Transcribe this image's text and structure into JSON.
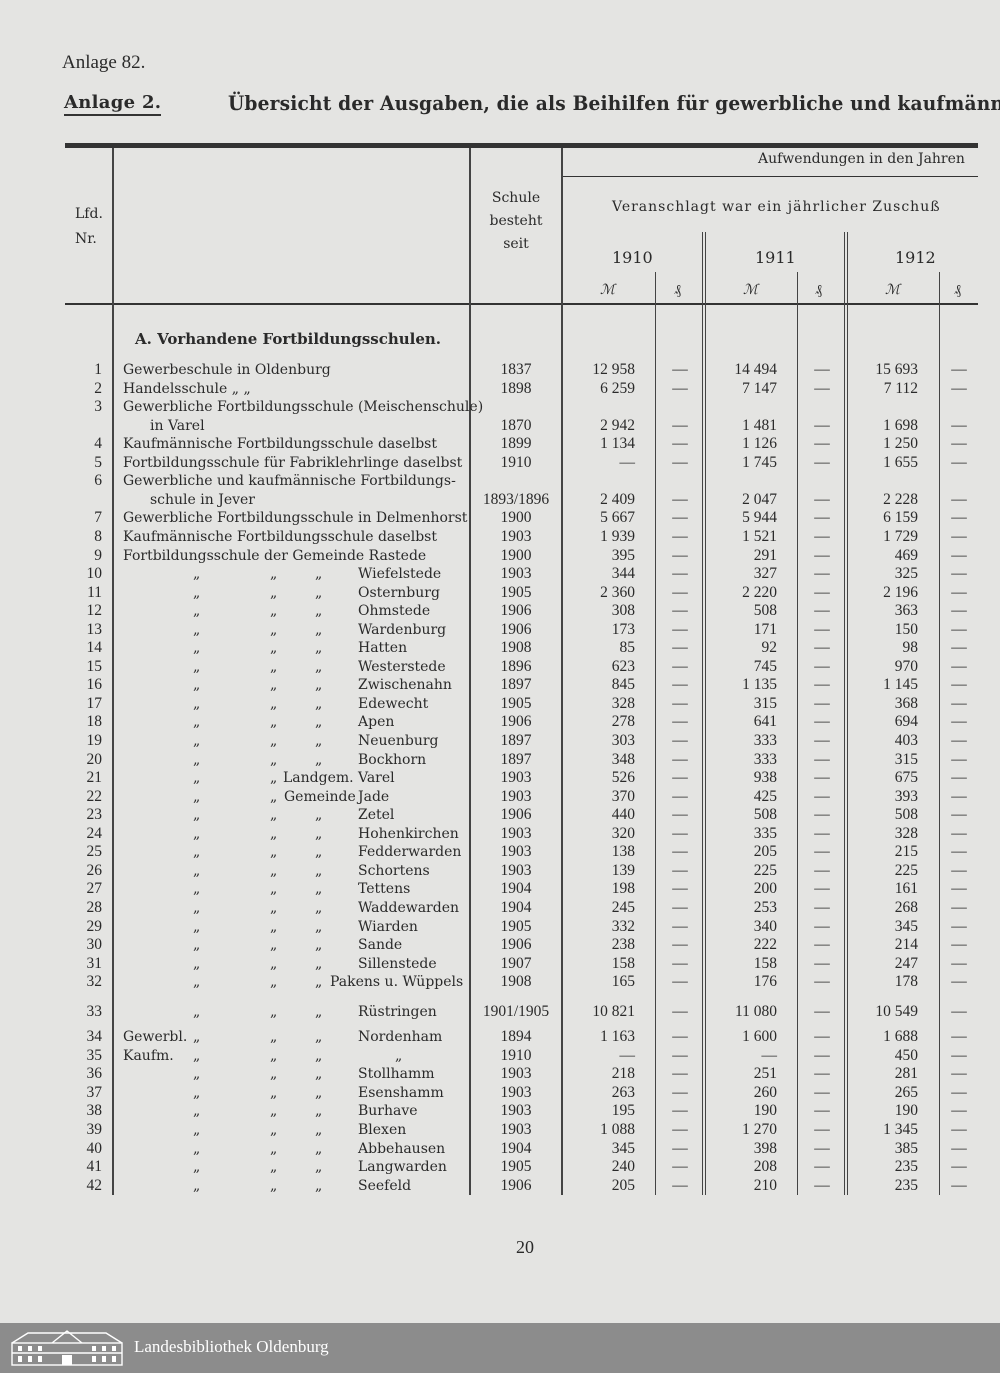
{
  "page_label": "Anlage 82.",
  "annex_label": "Anlage 2.",
  "title": "Übersicht der Ausgaben, die als Beihilfen für gewerbliche und kaufmännische",
  "header": {
    "nr_line1": "Lfd.",
    "nr_line2": "Nr.",
    "since_line1": "Schule",
    "since_line2": "besteht",
    "since_line3": "seit",
    "expenses": "Aufwendungen in den Jahren",
    "budgeted": "Veranschlagt war ein jährlicher Zuschuß",
    "years": [
      "1910",
      "1911",
      "1912"
    ],
    "mark": "ℳ",
    "pfennig": "₰"
  },
  "section_title": "A. Vorhandene Fortbildungsschulen.",
  "rows": [
    {
      "nr": "1",
      "lines": [
        "Gewerbeschule in Oldenburg"
      ],
      "since": "1837",
      "v": [
        "12 958",
        "—",
        "14 494",
        "—",
        "15 693",
        "—"
      ]
    },
    {
      "nr": "2",
      "lines": [
        "Handelsschule  „      „"
      ],
      "since": "1898",
      "v": [
        "6 259",
        "—",
        "7 147",
        "—",
        "7 112",
        "—"
      ]
    },
    {
      "nr": "3",
      "lines": [
        "Gewerbliche Fortbildungsschule (Meischenschule)",
        "in Varel"
      ],
      "since": "1870",
      "v": [
        "2 942",
        "—",
        "1 481",
        "—",
        "1 698",
        "—"
      ]
    },
    {
      "nr": "4",
      "lines": [
        "Kaufmännische Fortbildungsschule daselbst"
      ],
      "since": "1899",
      "v": [
        "1 134",
        "—",
        "1 126",
        "—",
        "1 250",
        "—"
      ]
    },
    {
      "nr": "5",
      "lines": [
        "Fortbildungsschule für Fabriklehrlinge daselbst"
      ],
      "since": "1910",
      "v": [
        "—",
        "—",
        "1 745",
        "—",
        "1 655",
        "—"
      ]
    },
    {
      "nr": "6",
      "lines": [
        "Gewerbliche und kaufmännische Fortbildungs-",
        "schule in Jever"
      ],
      "since": "1893/1896",
      "v": [
        "2 409",
        "—",
        "2 047",
        "—",
        "2 228",
        "—"
      ]
    },
    {
      "nr": "7",
      "lines": [
        "Gewerbliche Fortbildungsschule in Delmenhorst"
      ],
      "since": "1900",
      "v": [
        "5 667",
        "—",
        "5 944",
        "—",
        "6 159",
        "—"
      ]
    },
    {
      "nr": "8",
      "lines": [
        "Kaufmännische Fortbildungsschule daselbst"
      ],
      "since": "1903",
      "v": [
        "1 939",
        "—",
        "1 521",
        "—",
        "1 729",
        "—"
      ]
    },
    {
      "nr": "9",
      "lines": [
        "Fortbildungsschule der Gemeinde Rastede"
      ],
      "since": "1900",
      "v": [
        "395",
        "—",
        "291",
        "—",
        "469",
        "—"
      ]
    },
    {
      "nr": "10",
      "ditto": [
        "„",
        "„",
        "„"
      ],
      "place": "Wiefelstede",
      "since": "1903",
      "v": [
        "344",
        "—",
        "327",
        "—",
        "325",
        "—"
      ]
    },
    {
      "nr": "11",
      "ditto": [
        "„",
        "„",
        "„"
      ],
      "place": "Osternburg",
      "since": "1905",
      "v": [
        "2 360",
        "—",
        "2 220",
        "—",
        "2 196",
        "—"
      ]
    },
    {
      "nr": "12",
      "ditto": [
        "„",
        "„",
        "„"
      ],
      "place": "Ohmstede",
      "since": "1906",
      "v": [
        "308",
        "—",
        "508",
        "—",
        "363",
        "—"
      ]
    },
    {
      "nr": "13",
      "ditto": [
        "„",
        "„",
        "„"
      ],
      "place": "Wardenburg",
      "since": "1906",
      "v": [
        "173",
        "—",
        "171",
        "—",
        "150",
        "—"
      ]
    },
    {
      "nr": "14",
      "ditto": [
        "„",
        "„",
        "„"
      ],
      "place": "Hatten",
      "since": "1908",
      "v": [
        "85",
        "—",
        "92",
        "—",
        "98",
        "—"
      ]
    },
    {
      "nr": "15",
      "ditto": [
        "„",
        "„",
        "„"
      ],
      "place": "Westerstede",
      "since": "1896",
      "v": [
        "623",
        "—",
        "745",
        "—",
        "970",
        "—"
      ]
    },
    {
      "nr": "16",
      "ditto": [
        "„",
        "„",
        "„"
      ],
      "place": "Zwischenahn",
      "since": "1897",
      "v": [
        "845",
        "—",
        "1 135",
        "—",
        "1 145",
        "—"
      ]
    },
    {
      "nr": "17",
      "ditto": [
        "„",
        "„",
        "„"
      ],
      "place": "Edewecht",
      "since": "1905",
      "v": [
        "328",
        "—",
        "315",
        "—",
        "368",
        "—"
      ]
    },
    {
      "nr": "18",
      "ditto": [
        "„",
        "„",
        "„"
      ],
      "place": "Apen",
      "since": "1906",
      "v": [
        "278",
        "—",
        "641",
        "—",
        "694",
        "—"
      ]
    },
    {
      "nr": "19",
      "ditto": [
        "„",
        "„",
        "„"
      ],
      "place": "Neuenburg",
      "since": "1897",
      "v": [
        "303",
        "—",
        "333",
        "—",
        "403",
        "—"
      ]
    },
    {
      "nr": "20",
      "ditto": [
        "„",
        "„",
        "„"
      ],
      "place": "Bockhorn",
      "since": "1897",
      "v": [
        "348",
        "—",
        "333",
        "—",
        "315",
        "—"
      ]
    },
    {
      "nr": "21",
      "ditto": [
        "„",
        "„"
      ],
      "mid": "Landgem.",
      "place": "Varel",
      "since": "1903",
      "v": [
        "526",
        "—",
        "938",
        "—",
        "675",
        "—"
      ]
    },
    {
      "nr": "22",
      "ditto": [
        "„",
        "„"
      ],
      "mid": "Gemeinde",
      "place": "Jade",
      "since": "1903",
      "v": [
        "370",
        "—",
        "425",
        "—",
        "393",
        "—"
      ]
    },
    {
      "nr": "23",
      "ditto": [
        "„",
        "„",
        "„"
      ],
      "place": "Zetel",
      "since": "1906",
      "v": [
        "440",
        "—",
        "508",
        "—",
        "508",
        "—"
      ]
    },
    {
      "nr": "24",
      "ditto": [
        "„",
        "„",
        "„"
      ],
      "place": "Hohenkirchen",
      "since": "1903",
      "v": [
        "320",
        "—",
        "335",
        "—",
        "328",
        "—"
      ]
    },
    {
      "nr": "25",
      "ditto": [
        "„",
        "„",
        "„"
      ],
      "place": "Fedderwarden",
      "since": "1903",
      "v": [
        "138",
        "—",
        "205",
        "—",
        "215",
        "—"
      ]
    },
    {
      "nr": "26",
      "ditto": [
        "„",
        "„",
        "„"
      ],
      "place": "Schortens",
      "since": "1903",
      "v": [
        "139",
        "—",
        "225",
        "—",
        "225",
        "—"
      ]
    },
    {
      "nr": "27",
      "ditto": [
        "„",
        "„",
        "„"
      ],
      "place": "Tettens",
      "since": "1904",
      "v": [
        "198",
        "—",
        "200",
        "—",
        "161",
        "—"
      ]
    },
    {
      "nr": "28",
      "ditto": [
        "„",
        "„",
        "„"
      ],
      "place": "Waddewarden",
      "since": "1904",
      "v": [
        "245",
        "—",
        "253",
        "—",
        "268",
        "—"
      ]
    },
    {
      "nr": "29",
      "ditto": [
        "„",
        "„",
        "„"
      ],
      "place": "Wiarden",
      "since": "1905",
      "v": [
        "332",
        "—",
        "340",
        "—",
        "345",
        "—"
      ]
    },
    {
      "nr": "30",
      "ditto": [
        "„",
        "„",
        "„"
      ],
      "place": "Sande",
      "since": "1906",
      "v": [
        "238",
        "—",
        "222",
        "—",
        "214",
        "—"
      ]
    },
    {
      "nr": "31",
      "ditto": [
        "„",
        "„",
        "„"
      ],
      "place": "Sillenstede",
      "since": "1907",
      "v": [
        "158",
        "—",
        "158",
        "—",
        "247",
        "—"
      ]
    },
    {
      "nr": "32",
      "ditto": [
        "„",
        "„",
        "„"
      ],
      "place": "Pakens u. Wüppels",
      "since": "1908",
      "v": [
        "165",
        "—",
        "176",
        "—",
        "178",
        "—"
      ]
    },
    {
      "nr": "33",
      "ditto": [
        "„",
        "„",
        "„"
      ],
      "place": "Rüstringen",
      "since": "1901/1905",
      "v": [
        "10 821",
        "—",
        "11 080",
        "—",
        "10 549",
        "—"
      ]
    },
    {
      "nr": "34",
      "prefix": "Gewerbl.",
      "ditto": [
        "„",
        "„",
        "„"
      ],
      "place": "Nordenham",
      "since": "1894",
      "v": [
        "1 163",
        "—",
        "1 600",
        "—",
        "1 688",
        "—"
      ]
    },
    {
      "nr": "35",
      "prefix": "Kaufm.",
      "ditto": [
        "„",
        "„",
        "„"
      ],
      "place": "„",
      "since": "1910",
      "v": [
        "—",
        "—",
        "—",
        "—",
        "450",
        "—"
      ]
    },
    {
      "nr": "36",
      "ditto": [
        "„",
        "„",
        "„"
      ],
      "place": "Stollhamm",
      "since": "1903",
      "v": [
        "218",
        "—",
        "251",
        "—",
        "281",
        "—"
      ]
    },
    {
      "nr": "37",
      "ditto": [
        "„",
        "„",
        "„"
      ],
      "place": "Esenshamm",
      "since": "1903",
      "v": [
        "263",
        "—",
        "260",
        "—",
        "265",
        "—"
      ]
    },
    {
      "nr": "38",
      "ditto": [
        "„",
        "„",
        "„"
      ],
      "place": "Burhave",
      "since": "1903",
      "v": [
        "195",
        "—",
        "190",
        "—",
        "190",
        "—"
      ]
    },
    {
      "nr": "39",
      "ditto": [
        "„",
        "„",
        "„"
      ],
      "place": "Blexen",
      "since": "1903",
      "v": [
        "1 088",
        "—",
        "1 270",
        "—",
        "1 345",
        "—"
      ]
    },
    {
      "nr": "40",
      "ditto": [
        "„",
        "„",
        "„"
      ],
      "place": "Abbehausen",
      "since": "1904",
      "v": [
        "345",
        "—",
        "398",
        "—",
        "385",
        "—"
      ]
    },
    {
      "nr": "41",
      "ditto": [
        "„",
        "„",
        "„"
      ],
      "place": "Langwarden",
      "since": "1905",
      "v": [
        "240",
        "—",
        "208",
        "—",
        "235",
        "—"
      ]
    },
    {
      "nr": "42",
      "ditto": [
        "„",
        "„",
        "„"
      ],
      "place": "Seefeld",
      "since": "1906",
      "v": [
        "205",
        "—",
        "210",
        "—",
        "235",
        "—"
      ]
    }
  ],
  "page_number": "20",
  "footer": {
    "library": "Landesbibliothek Oldenburg",
    "logo_icon": "library-building-icon"
  }
}
